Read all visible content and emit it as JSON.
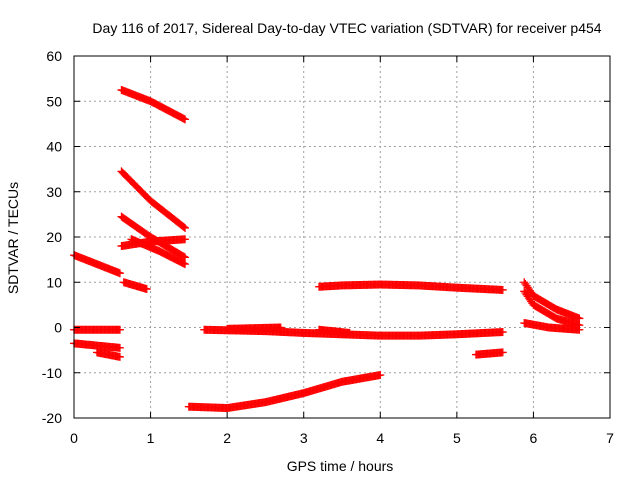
{
  "chart_data": {
    "type": "scatter",
    "title": "Day 116 of 2017, Sidereal Day-to-day VTEC variation (SDTVAR) for receiver p454",
    "xlabel": "GPS time / hours",
    "ylabel": "SDTVAR / TECUs",
    "xlim": [
      0,
      7
    ],
    "ylim": [
      -20,
      60
    ],
    "grid": true,
    "marker": "plus",
    "color": "#ff0000",
    "x_ticks": [
      "0",
      "1",
      "2",
      "3",
      "4",
      "5",
      "6",
      "7"
    ],
    "y_ticks": [
      "-20",
      "-10",
      "0",
      "10",
      "20",
      "30",
      "40",
      "50",
      "60"
    ],
    "series": [
      {
        "x": [
          0.0,
          0.3,
          0.6
        ],
        "y": [
          16.0,
          14.0,
          12.0
        ]
      },
      {
        "x": [
          0.0,
          0.3,
          0.6
        ],
        "y": [
          -0.5,
          -0.5,
          -0.5
        ]
      },
      {
        "x": [
          0.0,
          0.3,
          0.6
        ],
        "y": [
          -3.5,
          -4.0,
          -4.5
        ]
      },
      {
        "x": [
          0.3,
          0.6
        ],
        "y": [
          -5.5,
          -6.5
        ]
      },
      {
        "x": [
          0.65,
          0.95
        ],
        "y": [
          10.0,
          8.5
        ]
      },
      {
        "x": [
          0.62,
          1.0,
          1.45
        ],
        "y": [
          52.5,
          50.0,
          46.0
        ]
      },
      {
        "x": [
          0.62,
          1.0,
          1.45
        ],
        "y": [
          34.5,
          28.0,
          22.0
        ]
      },
      {
        "x": [
          0.62,
          1.0,
          1.45
        ],
        "y": [
          24.5,
          20.0,
          15.5
        ]
      },
      {
        "x": [
          0.62,
          1.0,
          1.45
        ],
        "y": [
          18.0,
          19.0,
          19.5
        ]
      },
      {
        "x": [
          0.75,
          1.1,
          1.45
        ],
        "y": [
          19.5,
          17.0,
          14.0
        ]
      },
      {
        "x": [
          1.5,
          2.0,
          2.5,
          3.0,
          3.5,
          4.0
        ],
        "y": [
          -17.5,
          -17.8,
          -16.5,
          -14.5,
          -12.0,
          -10.5
        ]
      },
      {
        "x": [
          1.7,
          2.5,
          3.0,
          3.5,
          4.0,
          4.5,
          5.0,
          5.6
        ],
        "y": [
          -0.5,
          -0.8,
          -1.2,
          -1.5,
          -1.8,
          -1.8,
          -1.5,
          -1.0
        ]
      },
      {
        "x": [
          2.0,
          2.7
        ],
        "y": [
          -0.3,
          0.0
        ]
      },
      {
        "x": [
          3.2,
          3.5,
          4.0,
          4.5,
          5.0,
          5.6
        ],
        "y": [
          9.0,
          9.3,
          9.5,
          9.3,
          8.8,
          8.3
        ]
      },
      {
        "x": [
          3.2,
          3.6
        ],
        "y": [
          -0.5,
          -1.2
        ]
      },
      {
        "x": [
          5.25,
          5.6
        ],
        "y": [
          -6.0,
          -5.5
        ]
      },
      {
        "x": [
          5.88,
          6.0,
          6.3,
          6.6
        ],
        "y": [
          10.0,
          7.0,
          4.0,
          2.0
        ]
      },
      {
        "x": [
          5.88,
          6.0,
          6.3,
          6.6
        ],
        "y": [
          8.0,
          5.0,
          2.0,
          0.5
        ]
      },
      {
        "x": [
          5.88,
          6.2,
          6.6
        ],
        "y": [
          1.0,
          0.0,
          -0.5
        ]
      }
    ]
  }
}
